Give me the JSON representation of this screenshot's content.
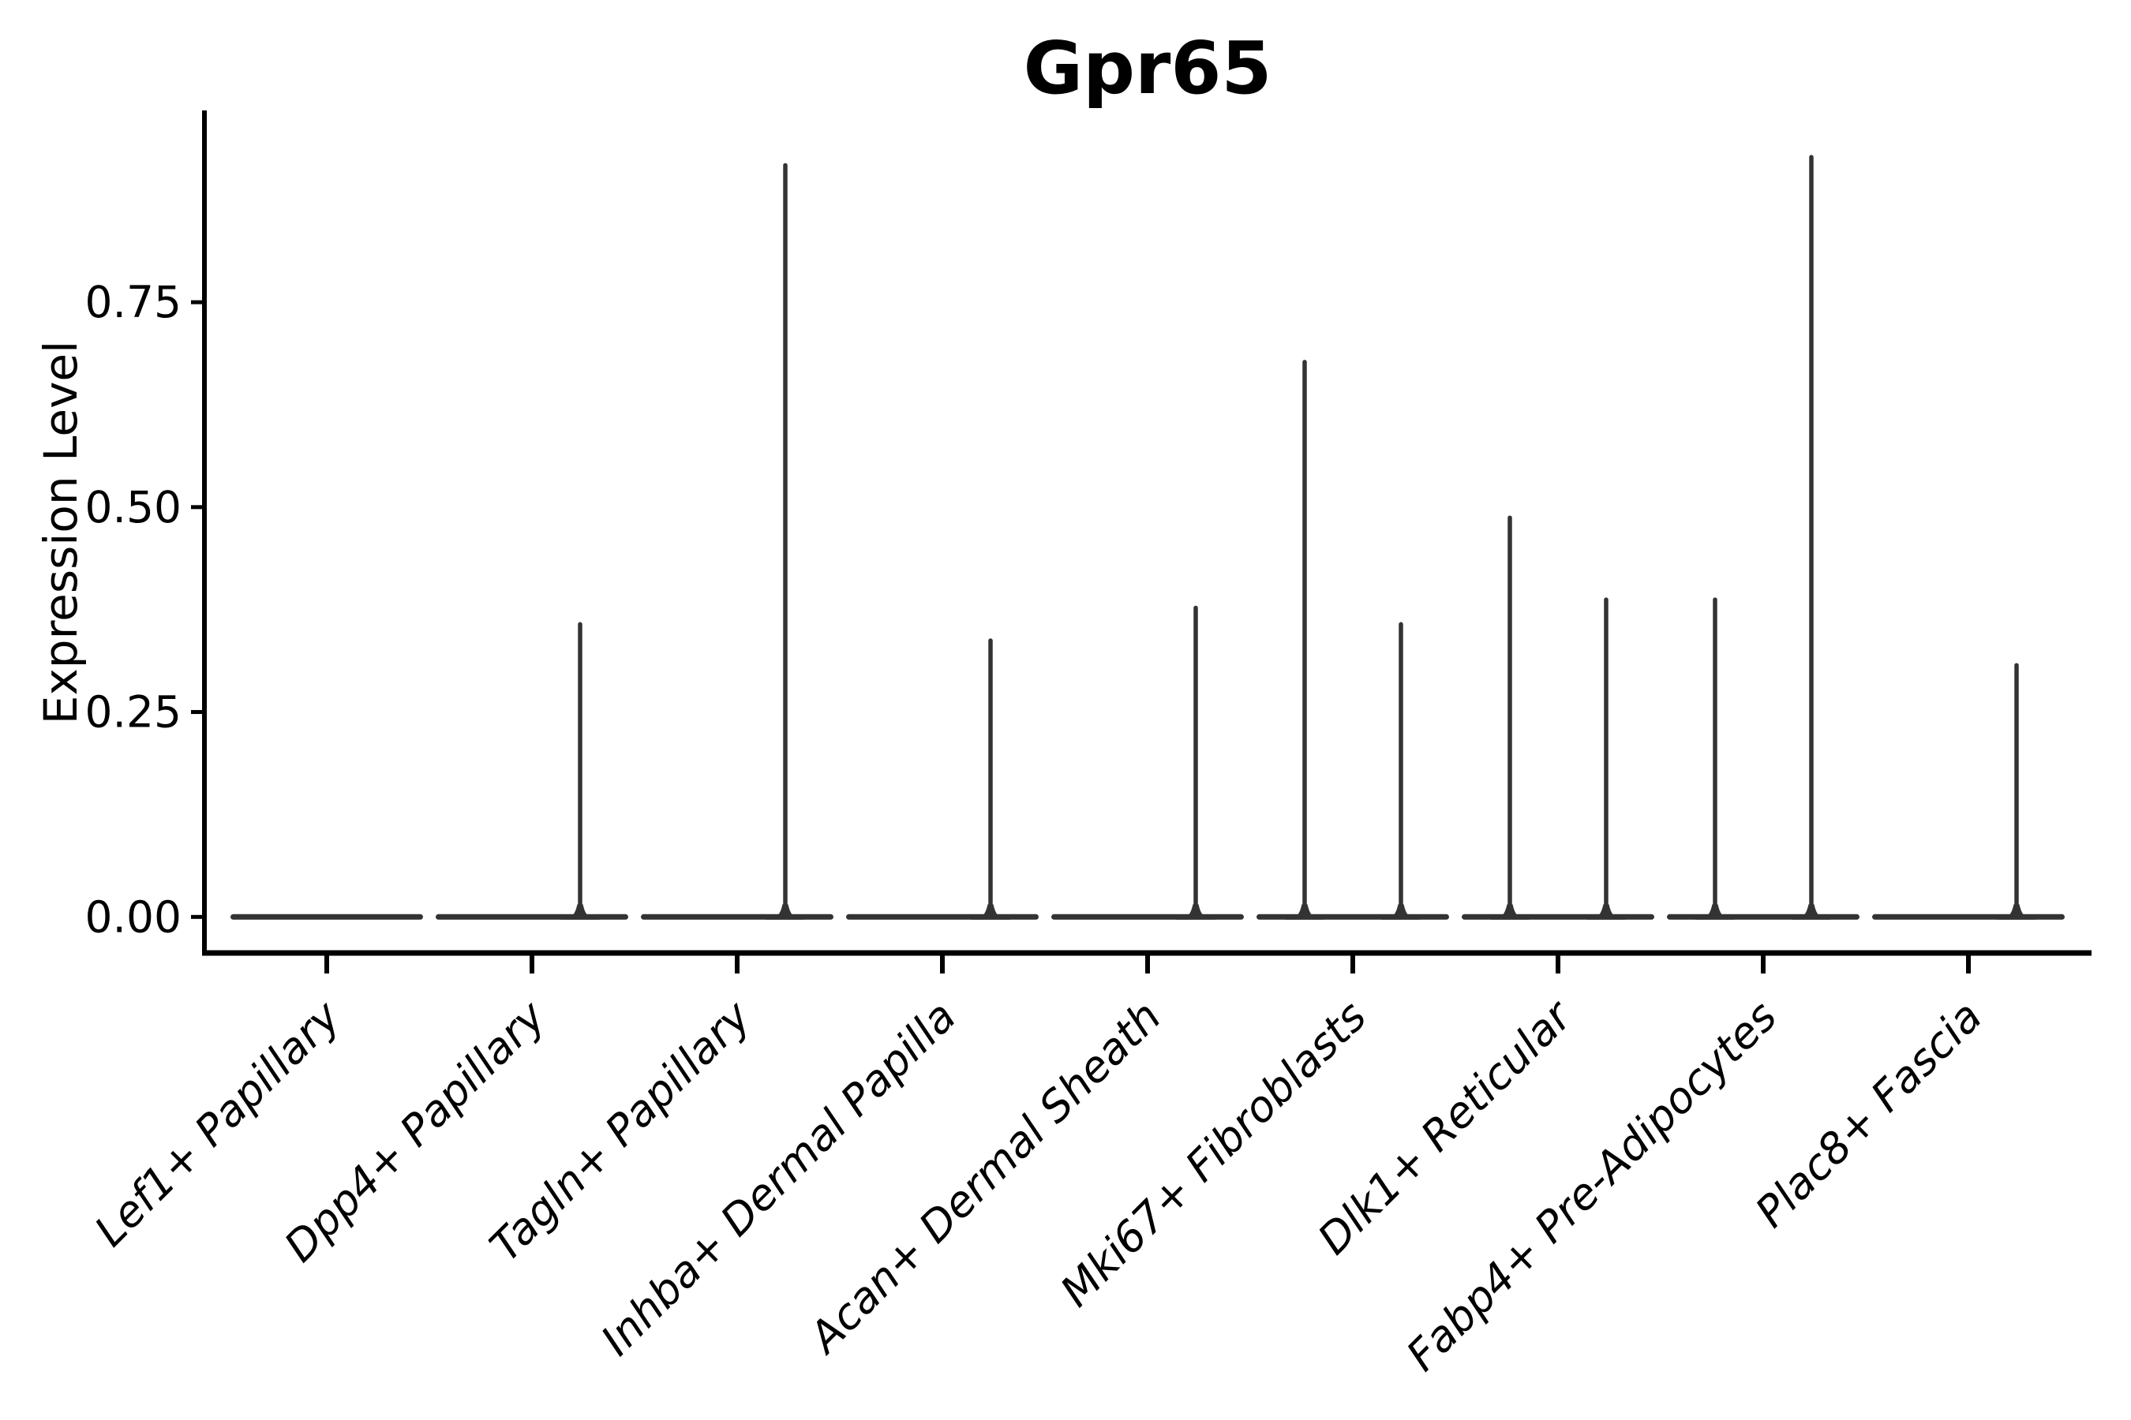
{
  "chart_data": {
    "type": "violin",
    "title": "Gpr65",
    "ylabel": "Expression Level",
    "xlabel": "",
    "grid": false,
    "legend": "none",
    "background": "#ffffff",
    "ylim": [
      -0.044,
      0.984
    ],
    "ytick_values": [
      0,
      0.25,
      0.5,
      0.75
    ],
    "ytick_labels": [
      "0.00",
      "0.25",
      "0.50",
      "0.75"
    ],
    "categories": [
      "Lef1+ Papillary",
      "Dpp4+ Papillary",
      "Tagln+ Papillary",
      "Inhba+ Dermal Papilla",
      "Acan+ Dermal Sheath",
      "Mki67+ Fibroblasts",
      "Dlk1+ Reticular",
      "Fabp4+ Pre-Adipocytes",
      "Plac8+ Fascia"
    ],
    "series": [
      {
        "name": "left-violin",
        "description": "max expression reached by the thin density spike of the left half-violin in each category (0 = flat violin at zero, no spike)",
        "max_values": [
          0,
          0,
          0,
          0,
          0,
          0.68,
          0.49,
          0.39,
          0
        ]
      },
      {
        "name": "right-violin",
        "description": "max expression reached by the thin density spike of the right half-violin in each category (0 = flat violin at zero, no spike)",
        "max_values": [
          0,
          0.36,
          0.92,
          0.34,
          0.38,
          0.36,
          0.39,
          0.93,
          0.31
        ]
      }
    ],
    "violin_baseline_value": 0,
    "note": "Nearly all density mass sits at expression 0 (wide flat bar); rare expressing cells create thin vertical spikes up to the listed max values.",
    "colors": {
      "violin": "#333333",
      "axis": "#000000",
      "text": "#000000",
      "background": "#ffffff"
    }
  }
}
